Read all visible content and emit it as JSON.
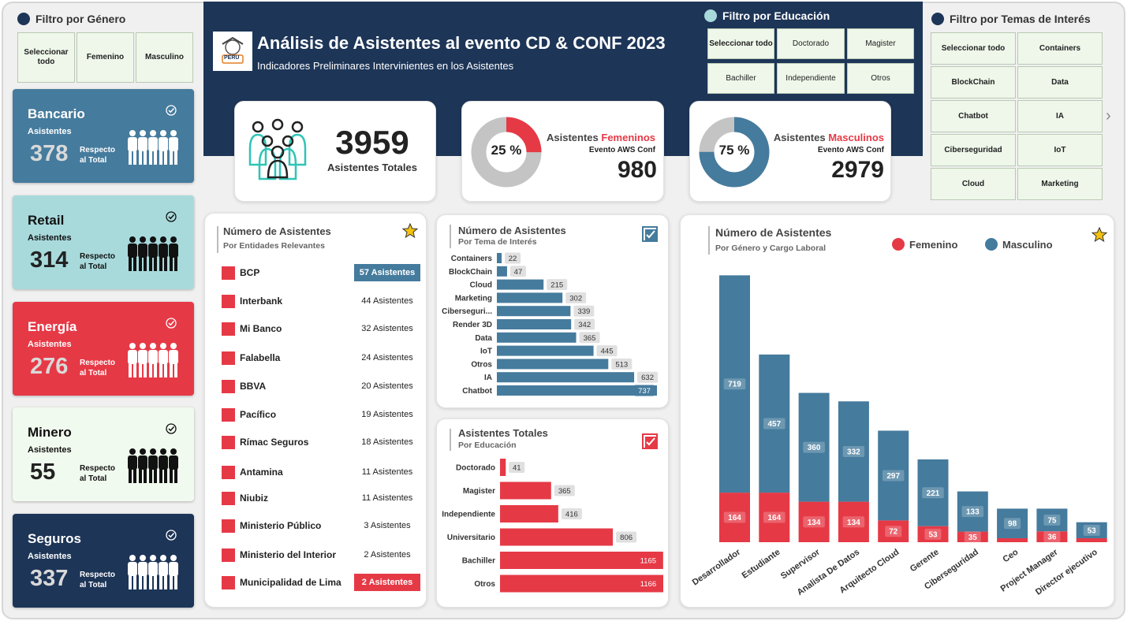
{
  "gender_filter": {
    "title": "Filtro por Género",
    "options": [
      "Seleccionar todo",
      "Femenino",
      "Masculino"
    ]
  },
  "header": {
    "title": "Análisis de Asistentes al evento CD & CONF 2023",
    "subtitle": "Indicadores Preliminares Intervinientes en los Asistentes",
    "logo_text": "PERU"
  },
  "education_filter": {
    "title": "Filtro por Educación",
    "options": [
      "Seleccionar todo",
      "Doctorado",
      "Magister",
      "Bachiller",
      "Independiente",
      "Otros"
    ]
  },
  "interest_filter": {
    "title": "Filtro por Temas de Interés",
    "options": [
      "Seleccionar todo",
      "Containers",
      "BlockChain",
      "Data",
      "Chatbot",
      "IA",
      "Ciberseguridad",
      "IoT",
      "Cloud",
      "Marketing"
    ],
    "next_arrow": "›"
  },
  "sectors": [
    {
      "name": "Bancario",
      "label": "Asistentes",
      "value": "378",
      "note_1": "Respecto",
      "note_2": "al Total",
      "bg": "#457b9d",
      "fg": "#ffffff",
      "valcolor": "#d9d9d9",
      "icon": "#ffffff"
    },
    {
      "name": "Retail",
      "label": "Asistentes",
      "value": "314",
      "note_1": "Respecto",
      "note_2": "al Total",
      "bg": "#a8dadc",
      "fg": "#111111",
      "valcolor": "#222222",
      "icon": "#111111"
    },
    {
      "name": "Energía",
      "label": "Asistentes",
      "value": "276",
      "note_1": "Respecto",
      "note_2": "al Total",
      "bg": "#e63946",
      "fg": "#ffffff",
      "valcolor": "#d9d9d9",
      "icon": "#ffffff"
    },
    {
      "name": "Minero",
      "label": "Asistentes",
      "value": "55",
      "note_1": "Respecto",
      "note_2": "al Total",
      "bg": "#f1faee",
      "fg": "#111111",
      "valcolor": "#222222",
      "icon": "#111111"
    },
    {
      "name": "Seguros",
      "label": "Asistentes",
      "value": "337",
      "note_1": "Respecto",
      "note_2": "al Total",
      "bg": "#1d3557",
      "fg": "#ffffff",
      "valcolor": "#d9d9d9",
      "icon": "#ffffff"
    }
  ],
  "kpi_total": {
    "value": "3959",
    "label": "Asistentes Totales"
  },
  "kpi_female": {
    "percent": "25 %",
    "fraction": 0.25,
    "label_prefix": "Asistentes ",
    "label_accent": "Femeninos",
    "event": "Evento AWS Conf",
    "value": "980"
  },
  "kpi_male": {
    "percent": "75 %",
    "fraction": 0.75,
    "label_prefix": "Asistentes ",
    "label_accent": "Masculinos",
    "event": "Evento AWS Conf",
    "value": "2979"
  },
  "entities": {
    "title": "Número de Asistentes",
    "subtitle": "Por Entidades Relevantes",
    "rows": [
      {
        "name": "BCP",
        "value": "57 Asistentes",
        "highlight": "#457b9d"
      },
      {
        "name": "Interbank",
        "value": "44 Asistentes"
      },
      {
        "name": "Mi Banco",
        "value": "32 Asistentes"
      },
      {
        "name": "Falabella",
        "value": "24 Asistentes"
      },
      {
        "name": "BBVA",
        "value": "20 Asistentes"
      },
      {
        "name": "Pacífico",
        "value": "19 Asistentes"
      },
      {
        "name": "Rímac Seguros",
        "value": "18 Asistentes"
      },
      {
        "name": "Antamina",
        "value": "11 Asistentes"
      },
      {
        "name": "Niubiz",
        "value": "11 Asistentes"
      },
      {
        "name": "Ministerio Público",
        "value": "3 Asistentes"
      },
      {
        "name": "Ministerio del Interior",
        "value": "2 Asistentes"
      },
      {
        "name": "Municipalidad de Lima",
        "value": "2 Asistentes",
        "highlight": "#e63946"
      }
    ]
  },
  "chart_data": [
    {
      "type": "bar",
      "orientation": "horizontal",
      "title": "Número de Asistentes",
      "subtitle": "Por Tema de Interés",
      "categories": [
        "Containers",
        "BlockChain",
        "Cloud",
        "Marketing",
        "Ciberseguri...",
        "Render 3D",
        "Data",
        "IoT",
        "Otros",
        "IA",
        "Chatbot"
      ],
      "values": [
        22,
        47,
        215,
        302,
        339,
        342,
        365,
        445,
        513,
        632,
        737
      ],
      "color": "#457b9d"
    },
    {
      "type": "bar",
      "orientation": "horizontal",
      "title": "Asistentes Totales",
      "subtitle": "Por Educación",
      "categories": [
        "Doctorado",
        "Magister",
        "Independiente",
        "Universitario",
        "Bachiller",
        "Otros"
      ],
      "values": [
        41,
        365,
        416,
        806,
        1165,
        1166
      ],
      "color": "#e63946"
    },
    {
      "type": "bar",
      "stacked": true,
      "title": "Número de Asistentes",
      "subtitle": "Por Género y Cargo Laboral",
      "categories": [
        "Desarrollador",
        "Estudiante",
        "Supervisor",
        "Analista De Datos",
        "Arquitecto Cloud",
        "Gerente",
        "Ciberseguridad",
        "Ceo",
        "Project Manager",
        "Director ejecutivo"
      ],
      "series": [
        {
          "name": "Femenino",
          "values": [
            164,
            164,
            134,
            134,
            72,
            53,
            35,
            0,
            36,
            0
          ],
          "color": "#e63946"
        },
        {
          "name": "Masculino",
          "values": [
            719,
            457,
            360,
            332,
            297,
            221,
            133,
            98,
            75,
            53
          ],
          "color": "#457b9d"
        }
      ],
      "legend_position": "top"
    }
  ]
}
